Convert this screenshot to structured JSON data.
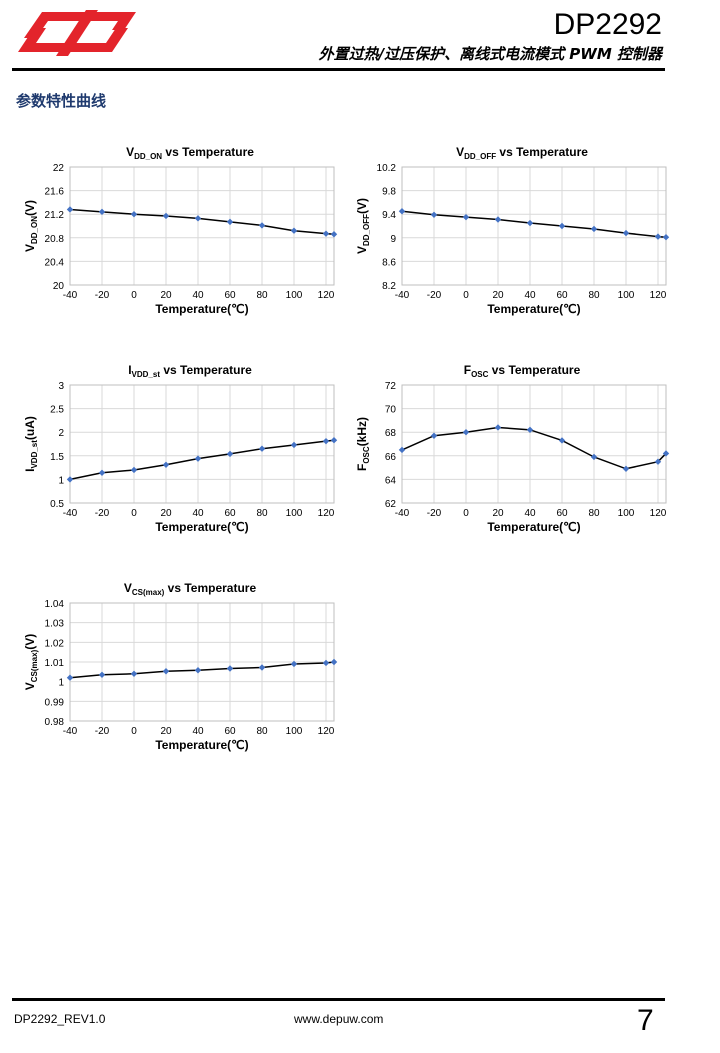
{
  "header": {
    "doc_title": "DP2292",
    "doc_subtitle": "外置过热/过压保护、离线式电流模式 PWM 控制器"
  },
  "section": {
    "title": "参数特性曲线"
  },
  "colors": {
    "marker": "#4472c4",
    "line": "#000000",
    "grid": "#d9d9d9",
    "section_title": "#1f3a6e",
    "logo": "#e3242b"
  },
  "chart_data": [
    {
      "type": "line",
      "title_main": "V",
      "title_sub": "DD_ON",
      "title_rest": " vs Temperature",
      "ylabel_main": "V",
      "ylabel_sub": "DD_ON",
      "ylabel_rest": "(V)",
      "xlabel": "Temperature(℃)",
      "x": [
        -40,
        -20,
        0,
        20,
        40,
        60,
        80,
        100,
        120,
        125
      ],
      "y": [
        21.28,
        21.24,
        21.2,
        21.17,
        21.13,
        21.07,
        21.01,
        20.92,
        20.87,
        20.86
      ],
      "xticks": [
        -40,
        -20,
        0,
        20,
        40,
        60,
        80,
        100,
        120
      ],
      "xtick_labels": [
        "-40",
        "-20",
        "0",
        "20",
        "40",
        "60",
        "80",
        "100",
        "120"
      ],
      "xlim": [
        -40,
        125
      ],
      "yticks": [
        20,
        20.4,
        20.8,
        21.2,
        21.6,
        22
      ],
      "ytick_labels": [
        "20",
        "20.4",
        "20.8",
        "21.2",
        "21.6",
        "22"
      ],
      "ylim": [
        20,
        22
      ]
    },
    {
      "type": "line",
      "title_main": "V",
      "title_sub": "DD_OFF",
      "title_rest": " vs Temperature",
      "ylabel_main": "V",
      "ylabel_sub": "DD_OFF",
      "ylabel_rest": "(V)",
      "xlabel": "Temperature(℃)",
      "x": [
        -40,
        -20,
        0,
        20,
        40,
        60,
        80,
        100,
        120,
        125
      ],
      "y": [
        9.45,
        9.39,
        9.35,
        9.31,
        9.25,
        9.2,
        9.15,
        9.08,
        9.02,
        9.01
      ],
      "xticks": [
        -40,
        -20,
        0,
        20,
        40,
        60,
        80,
        100,
        120
      ],
      "xtick_labels": [
        "-40",
        "-20",
        "0",
        "20",
        "40",
        "60",
        "80",
        "100",
        "120"
      ],
      "xlim": [
        -40,
        125
      ],
      "yticks": [
        8.2,
        8.6,
        9,
        9.4,
        9.8,
        10.2
      ],
      "ytick_labels": [
        "8.2",
        "8.6",
        "9",
        "9.4",
        "9.8",
        "10.2"
      ],
      "ylim": [
        8.2,
        10.2
      ]
    },
    {
      "type": "line",
      "title_main": "I",
      "title_sub": "VDD_st",
      "title_rest": " vs Temperature",
      "ylabel_main": "I",
      "ylabel_sub": "VDD_st",
      "ylabel_rest": "(uA)",
      "xlabel": "Temperature(℃)",
      "x": [
        -40,
        -20,
        0,
        20,
        40,
        60,
        80,
        100,
        120,
        125
      ],
      "y": [
        1.0,
        1.14,
        1.2,
        1.31,
        1.44,
        1.54,
        1.65,
        1.73,
        1.81,
        1.83
      ],
      "xticks": [
        -40,
        -20,
        0,
        20,
        40,
        60,
        80,
        100,
        120
      ],
      "xtick_labels": [
        "-40",
        "-20",
        "0",
        "20",
        "40",
        "60",
        "80",
        "100",
        "120"
      ],
      "xlim": [
        -40,
        125
      ],
      "yticks": [
        0.5,
        1,
        1.5,
        2,
        2.5,
        3
      ],
      "ytick_labels": [
        "0.5",
        "1",
        "1.5",
        "2",
        "2.5",
        "3"
      ],
      "ylim": [
        0.5,
        3
      ]
    },
    {
      "type": "line",
      "title_main": "F",
      "title_sub": "OSC",
      "title_rest": " vs Temperature",
      "ylabel_main": "F",
      "ylabel_sub": "OSC",
      "ylabel_rest": "(kHz)",
      "xlabel": "Temperature(℃)",
      "x": [
        -40,
        -20,
        0,
        20,
        40,
        60,
        80,
        100,
        120,
        125
      ],
      "y": [
        66.5,
        67.7,
        68.0,
        68.4,
        68.2,
        67.3,
        65.9,
        64.9,
        65.5,
        66.2
      ],
      "xticks": [
        -40,
        -20,
        0,
        20,
        40,
        60,
        80,
        100,
        120
      ],
      "xtick_labels": [
        "-40",
        "-20",
        "0",
        "20",
        "40",
        "60",
        "80",
        "100",
        "120"
      ],
      "xlim": [
        -40,
        125
      ],
      "yticks": [
        62,
        64,
        66,
        68,
        70,
        72
      ],
      "ytick_labels": [
        "62",
        "64",
        "66",
        "68",
        "70",
        "72"
      ],
      "ylim": [
        62,
        72
      ]
    },
    {
      "type": "line",
      "title_main": "V",
      "title_sub": "CS(max)",
      "title_rest": " vs Temperature",
      "ylabel_main": "V",
      "ylabel_sub": "CS(max)",
      "ylabel_rest": "(V)",
      "xlabel": "Temperature(℃)",
      "x": [
        -40,
        -20,
        0,
        20,
        40,
        60,
        80,
        100,
        120,
        125
      ],
      "y": [
        1.002,
        1.0035,
        1.004,
        1.0053,
        1.0058,
        1.0067,
        1.0072,
        1.009,
        1.0095,
        1.01
      ],
      "xticks": [
        -40,
        -20,
        0,
        20,
        40,
        60,
        80,
        100,
        120
      ],
      "xtick_labels": [
        "-40",
        "-20",
        "0",
        "20",
        "40",
        "60",
        "80",
        "100",
        "120"
      ],
      "xlim": [
        -40,
        125
      ],
      "yticks": [
        0.98,
        0.99,
        1,
        1.01,
        1.02,
        1.03,
        1.04
      ],
      "ytick_labels": [
        "0.98",
        "0.99",
        "1",
        "1.01",
        "1.02",
        "1.03",
        "1.04"
      ],
      "ylim": [
        0.98,
        1.04
      ]
    }
  ],
  "footer": {
    "doc_rev": "DP2292_REV1.0",
    "website": "www.depuw.com",
    "page_number": "7"
  }
}
